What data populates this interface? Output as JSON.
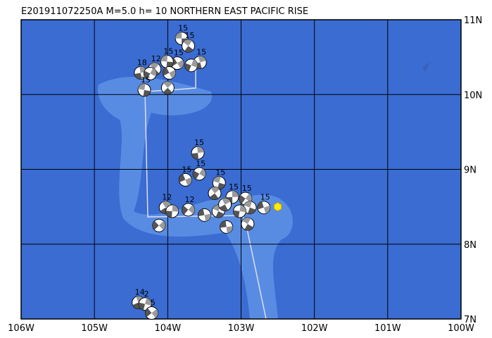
{
  "title": "E201911072250A M=5.0 h= 10 NORTHERN EAST PACIFIC RISE",
  "lon_range": [
    -106,
    -100
  ],
  "lat_range": [
    7,
    11
  ],
  "lon_labels": [
    {
      "value": -106,
      "label": "106W"
    },
    {
      "value": -105,
      "label": "105W"
    },
    {
      "value": -104,
      "label": "104W"
    },
    {
      "value": -103,
      "label": "103W"
    },
    {
      "value": -102,
      "label": "102W"
    },
    {
      "value": -101,
      "label": "101W"
    },
    {
      "value": -100,
      "label": "100W"
    }
  ],
  "lat_labels": [
    {
      "value": 11,
      "label": "11N"
    },
    {
      "value": 10,
      "label": "10N"
    },
    {
      "value": 9,
      "label": "9N"
    },
    {
      "value": 8,
      "label": "8N"
    },
    {
      "value": 7,
      "label": "7N"
    }
  ],
  "events": [
    {
      "lon": -103.81,
      "lat": 10.75,
      "depth": 15
    },
    {
      "lon": -103.72,
      "lat": 10.65,
      "depth": 15
    },
    {
      "lon": -103.56,
      "lat": 10.43,
      "depth": 15
    },
    {
      "lon": -103.68,
      "lat": 10.39
    },
    {
      "lon": -103.87,
      "lat": 10.42,
      "depth": 15
    },
    {
      "lon": -104.01,
      "lat": 10.44,
      "depth": 15
    },
    {
      "lon": -104.18,
      "lat": 10.34,
      "depth": 12
    },
    {
      "lon": -104.37,
      "lat": 10.29,
      "depth": 18
    },
    {
      "lon": -104.24,
      "lat": 10.28
    },
    {
      "lon": -103.98,
      "lat": 10.29
    },
    {
      "lon": -104.32,
      "lat": 10.06,
      "depth": 15
    },
    {
      "lon": -104.0,
      "lat": 10.09
    },
    {
      "lon": -103.59,
      "lat": 9.22,
      "depth": 15
    },
    {
      "lon": -103.57,
      "lat": 8.94,
      "depth": 15
    },
    {
      "lon": -103.76,
      "lat": 8.86,
      "depth": 15
    },
    {
      "lon": -103.3,
      "lat": 8.82,
      "depth": 15
    },
    {
      "lon": -103.36,
      "lat": 8.68
    },
    {
      "lon": -103.12,
      "lat": 8.63,
      "depth": 15
    },
    {
      "lon": -102.94,
      "lat": 8.61,
      "depth": 15
    },
    {
      "lon": -102.69,
      "lat": 8.49,
      "depth": 15
    },
    {
      "lon": -102.88,
      "lat": 8.49
    },
    {
      "lon": -104.03,
      "lat": 8.49,
      "depth": 12
    },
    {
      "lon": -103.94,
      "lat": 8.44
    },
    {
      "lon": -103.72,
      "lat": 8.46,
      "depth": 12
    },
    {
      "lon": -103.5,
      "lat": 8.39
    },
    {
      "lon": -103.31,
      "lat": 8.44
    },
    {
      "lon": -103.22,
      "lat": 8.53
    },
    {
      "lon": -103.02,
      "lat": 8.44
    },
    {
      "lon": -104.12,
      "lat": 8.25
    },
    {
      "lon": -103.2,
      "lat": 8.23
    },
    {
      "lon": -102.91,
      "lat": 8.27
    },
    {
      "lon": -104.4,
      "lat": 7.22,
      "depth": 14
    },
    {
      "lon": -104.31,
      "lat": 7.2,
      "depth": 2
    },
    {
      "lon": -104.22,
      "lat": 7.08,
      "depth": 5
    }
  ],
  "epicenter": {
    "lon": -102.5,
    "lat": 8.5
  }
}
